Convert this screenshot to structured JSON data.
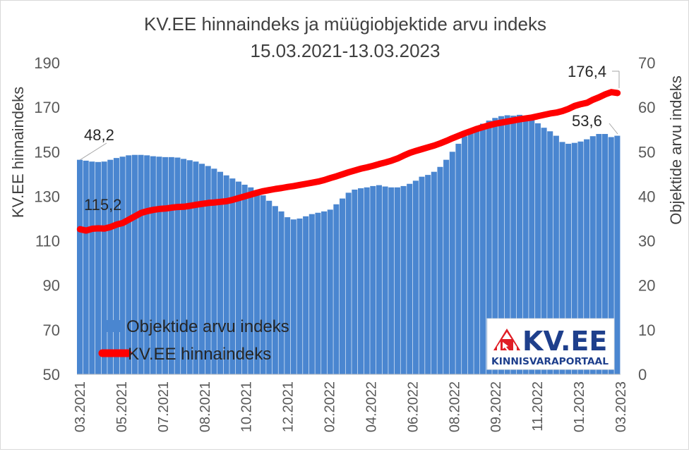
{
  "chart_data": {
    "type": "bar+line",
    "title": "KV.EE hinnaindeks ja müügiobjektide arvu indeks",
    "subtitle": "15.03.2021-13.03.2023",
    "ylabel_left": "KV.EE hinnaindeks",
    "ylabel_right": "Objektide arvu indeks",
    "ylim_left": [
      50,
      190
    ],
    "ylim_right": [
      0,
      70
    ],
    "yticks_left": [
      "50",
      "70",
      "90",
      "110",
      "130",
      "150",
      "170",
      "190"
    ],
    "yticks_right": [
      "0",
      "10",
      "20",
      "30",
      "40",
      "50",
      "60",
      "70"
    ],
    "x_tick_labels": [
      "03.2021",
      "05.2021",
      "07.2021",
      "08.2021",
      "10.2021",
      "12.2021",
      "02.2022",
      "04.2022",
      "06.2022",
      "08.2022",
      "09.2022",
      "11.2022",
      "01.2023",
      "03.2023"
    ],
    "grid": false,
    "legend_placement": "bottom-left",
    "series": [
      {
        "name": "Objektide arvu indeks",
        "type": "bar",
        "axis": "right",
        "color": "#4a86d0",
        "values": [
          48.2,
          48.0,
          47.8,
          47.7,
          47.8,
          48.2,
          48.6,
          48.9,
          49.2,
          49.3,
          49.3,
          49.2,
          49.0,
          48.9,
          48.8,
          48.8,
          48.7,
          48.4,
          48.1,
          47.8,
          47.3,
          46.8,
          46.2,
          45.5,
          44.7,
          44.0,
          43.3,
          42.6,
          42.0,
          41.2,
          40.2,
          39.0,
          37.8,
          36.6,
          35.3,
          34.8,
          35.0,
          35.5,
          36.0,
          36.3,
          36.6,
          37.0,
          38.2,
          39.5,
          40.8,
          41.5,
          41.8,
          42.0,
          42.3,
          42.5,
          42.2,
          42.0,
          42.0,
          42.3,
          42.8,
          43.5,
          44.4,
          44.8,
          45.5,
          46.6,
          48.2,
          50.0,
          51.8,
          53.5,
          54.7,
          55.5,
          56.3,
          57.0,
          57.6,
          58.0,
          58.2,
          58.1,
          58.3,
          58.1,
          57.5,
          56.4,
          55.4,
          54.6,
          53.6,
          52.2,
          51.8,
          52.0,
          52.3,
          52.8,
          53.5,
          54.0,
          54.0,
          53.3,
          53.6
        ]
      },
      {
        "name": "KV.EE hinnaindeks",
        "type": "line",
        "axis": "left",
        "color": "#ff0000",
        "values": [
          115.2,
          114.6,
          115.4,
          115.6,
          115.5,
          116.2,
          117.3,
          118.0,
          119.5,
          121.0,
          122.5,
          123.3,
          123.9,
          124.3,
          124.5,
          124.9,
          125.2,
          125.3,
          125.7,
          126.2,
          126.6,
          127.0,
          127.2,
          127.5,
          127.8,
          128.4,
          129.2,
          130.0,
          130.8,
          131.6,
          132.3,
          132.8,
          133.3,
          133.7,
          134.2,
          134.6,
          135.1,
          135.6,
          136.1,
          136.6,
          137.3,
          138.2,
          139.0,
          139.9,
          140.8,
          141.6,
          142.4,
          143.0,
          143.7,
          144.5,
          145.2,
          146.0,
          147.0,
          148.3,
          149.5,
          150.4,
          151.2,
          152.0,
          152.8,
          153.8,
          154.9,
          156.1,
          157.2,
          158.3,
          159.3,
          160.3,
          161.1,
          161.9,
          162.6,
          163.1,
          163.6,
          164.1,
          164.6,
          165.0,
          165.4,
          166.0,
          166.6,
          167.2,
          167.6,
          168.3,
          169.3,
          170.6,
          171.4,
          172.0,
          173.4,
          174.5,
          175.8,
          176.8,
          176.4
        ]
      }
    ],
    "annotations": [
      {
        "text": "48,2",
        "series": "Objektide arvu indeks",
        "index": 0
      },
      {
        "text": "115,2",
        "series": "KV.EE hinnaindeks",
        "index": 0
      },
      {
        "text": "176,4",
        "series": "KV.EE hinnaindeks",
        "index": 88
      },
      {
        "text": "53,6",
        "series": "Objektide arvu indeks",
        "index": 88
      }
    ]
  },
  "logo": {
    "name": "KV.EE",
    "tagline": "KINNISVARAPORTAAL",
    "brand_color": "#e01e26",
    "icon": "house-arrow-icon"
  }
}
